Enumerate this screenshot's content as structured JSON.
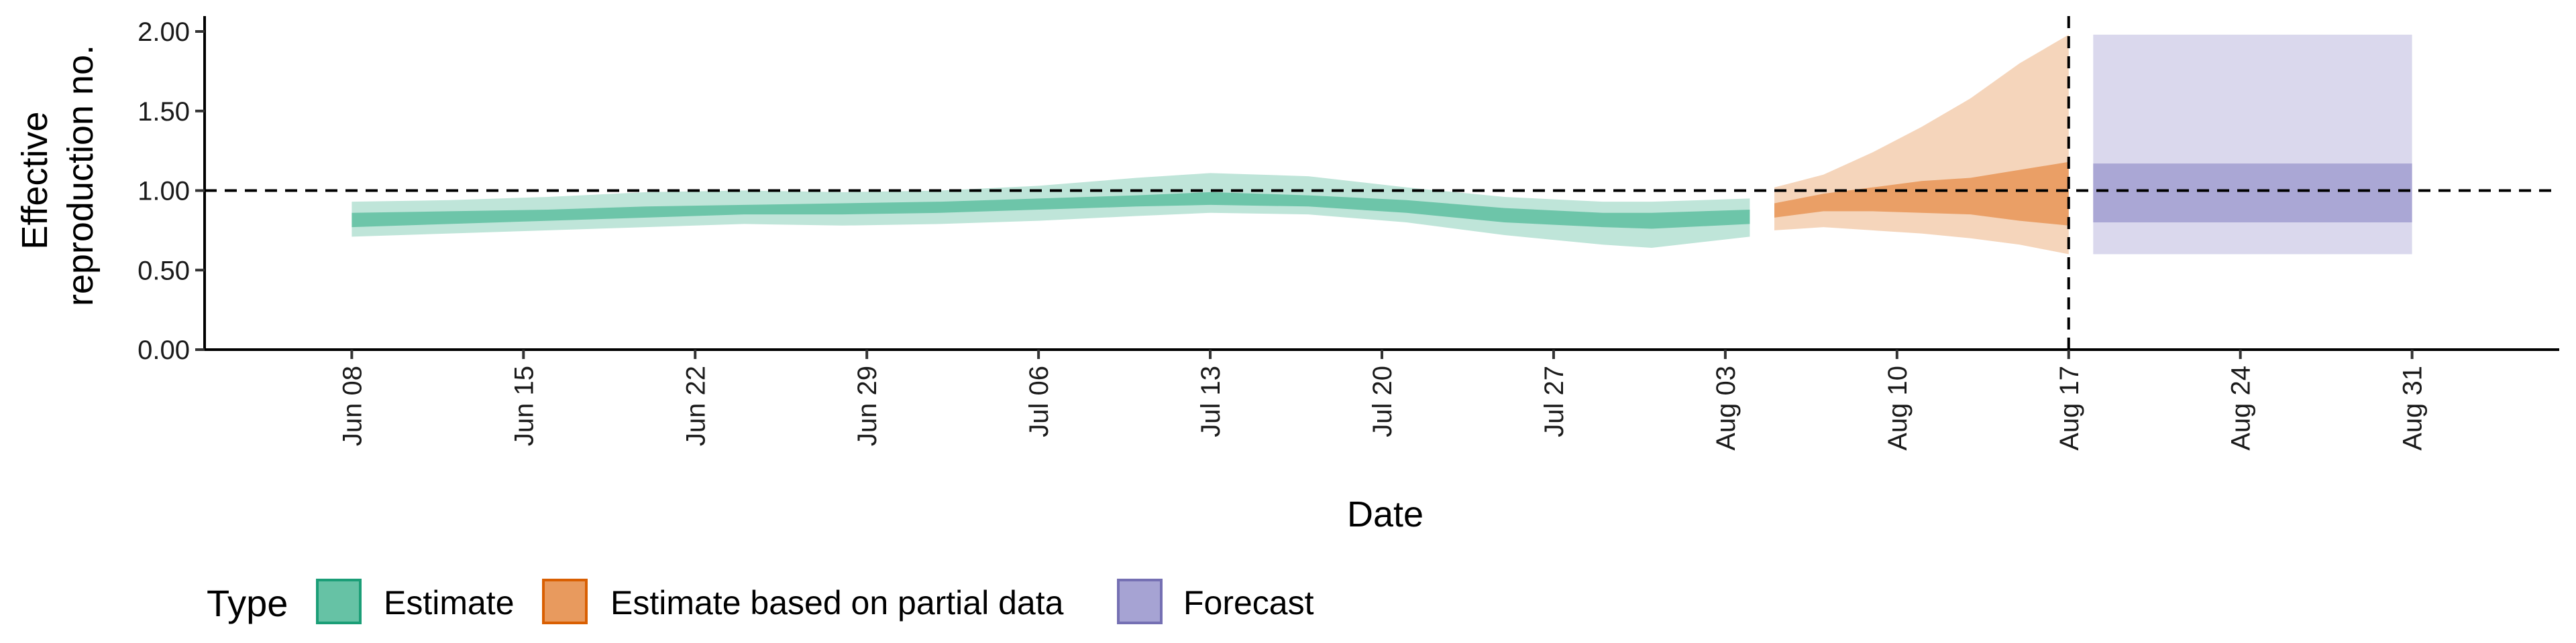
{
  "chart_data": {
    "type": "area",
    "xlabel": "Date",
    "ylabel": "Effective reproduction no.",
    "ylabel_lines": [
      "Effective",
      "reproduction no."
    ],
    "ylim": [
      0,
      2.08
    ],
    "yticks": [
      0.0,
      0.5,
      1.0,
      1.5,
      2.0
    ],
    "ytick_labels": [
      "0.00",
      "0.50",
      "1.00",
      "1.50",
      "2.00"
    ],
    "xrange": [
      "2020-06-02",
      "2020-09-06"
    ],
    "xticks": [
      "2020-06-08",
      "2020-06-15",
      "2020-06-22",
      "2020-06-29",
      "2020-07-06",
      "2020-07-13",
      "2020-07-20",
      "2020-07-27",
      "2020-08-03",
      "2020-08-10",
      "2020-08-17",
      "2020-08-24",
      "2020-08-31"
    ],
    "xtick_labels": [
      "Jun 08",
      "Jun 15",
      "Jun 22",
      "Jun 29",
      "Jul 06",
      "Jul 13",
      "Jul 20",
      "Jul 27",
      "Aug 03",
      "Aug 10",
      "Aug 17",
      "Aug 24",
      "Aug 31"
    ],
    "reference_line_y": 1.0,
    "reference_line_x": "2020-08-17",
    "legend_title": "Type",
    "legend_position": "bottom",
    "series": [
      {
        "name": "Estimate",
        "color": "#1b9e77",
        "fill": "#66c2a5",
        "points": [
          {
            "date": "2020-06-08",
            "lo90": 0.71,
            "lo50": 0.77,
            "hi50": 0.86,
            "hi90": 0.93
          },
          {
            "date": "2020-06-12",
            "lo90": 0.73,
            "lo50": 0.79,
            "hi50": 0.87,
            "hi90": 0.94
          },
          {
            "date": "2020-06-16",
            "lo90": 0.75,
            "lo50": 0.81,
            "hi50": 0.88,
            "hi90": 0.96
          },
          {
            "date": "2020-06-20",
            "lo90": 0.77,
            "lo50": 0.83,
            "hi50": 0.9,
            "hi90": 0.99
          },
          {
            "date": "2020-06-24",
            "lo90": 0.79,
            "lo50": 0.85,
            "hi50": 0.91,
            "hi90": 1.0
          },
          {
            "date": "2020-06-28",
            "lo90": 0.78,
            "lo50": 0.85,
            "hi50": 0.92,
            "hi90": 0.99
          },
          {
            "date": "2020-07-02",
            "lo90": 0.79,
            "lo50": 0.86,
            "hi50": 0.93,
            "hi90": 1.0
          },
          {
            "date": "2020-07-06",
            "lo90": 0.81,
            "lo50": 0.88,
            "hi50": 0.95,
            "hi90": 1.03
          },
          {
            "date": "2020-07-10",
            "lo90": 0.84,
            "lo50": 0.9,
            "hi50": 0.97,
            "hi90": 1.08
          },
          {
            "date": "2020-07-13",
            "lo90": 0.86,
            "lo50": 0.91,
            "hi50": 0.99,
            "hi90": 1.11
          },
          {
            "date": "2020-07-17",
            "lo90": 0.85,
            "lo50": 0.9,
            "hi50": 0.97,
            "hi90": 1.09
          },
          {
            "date": "2020-07-21",
            "lo90": 0.8,
            "lo50": 0.86,
            "hi50": 0.94,
            "hi90": 1.02
          },
          {
            "date": "2020-07-25",
            "lo90": 0.72,
            "lo50": 0.8,
            "hi50": 0.89,
            "hi90": 0.96
          },
          {
            "date": "2020-07-29",
            "lo90": 0.66,
            "lo50": 0.77,
            "hi50": 0.86,
            "hi90": 0.93
          },
          {
            "date": "2020-07-31",
            "lo90": 0.64,
            "lo50": 0.76,
            "hi50": 0.86,
            "hi90": 0.93
          },
          {
            "date": "2020-08-04",
            "lo90": 0.71,
            "lo50": 0.79,
            "hi50": 0.88,
            "hi90": 0.95
          }
        ]
      },
      {
        "name": "Estimate based on partial data",
        "color": "#d95f02",
        "fill": "#e89a5e",
        "points": [
          {
            "date": "2020-08-05",
            "lo90": 0.75,
            "lo50": 0.83,
            "hi50": 0.92,
            "hi90": 1.02
          },
          {
            "date": "2020-08-07",
            "lo90": 0.77,
            "lo50": 0.87,
            "hi50": 0.98,
            "hi90": 1.1
          },
          {
            "date": "2020-08-09",
            "lo90": 0.75,
            "lo50": 0.87,
            "hi50": 1.02,
            "hi90": 1.24
          },
          {
            "date": "2020-08-11",
            "lo90": 0.73,
            "lo50": 0.86,
            "hi50": 1.06,
            "hi90": 1.4
          },
          {
            "date": "2020-08-13",
            "lo90": 0.7,
            "lo50": 0.85,
            "hi50": 1.08,
            "hi90": 1.58
          },
          {
            "date": "2020-08-15",
            "lo90": 0.66,
            "lo50": 0.81,
            "hi50": 1.13,
            "hi90": 1.8
          },
          {
            "date": "2020-08-17",
            "lo90": 0.6,
            "lo50": 0.78,
            "hi50": 1.18,
            "hi90": 1.98
          }
        ]
      },
      {
        "name": "Forecast",
        "color": "#7570b3",
        "fill": "#a6a3d3",
        "points": [
          {
            "date": "2020-08-18",
            "lo90": 0.6,
            "lo50": 0.8,
            "hi50": 1.17,
            "hi90": 1.98
          },
          {
            "date": "2020-08-31",
            "lo90": 0.6,
            "lo50": 0.8,
            "hi50": 1.17,
            "hi90": 1.98
          }
        ]
      }
    ]
  }
}
